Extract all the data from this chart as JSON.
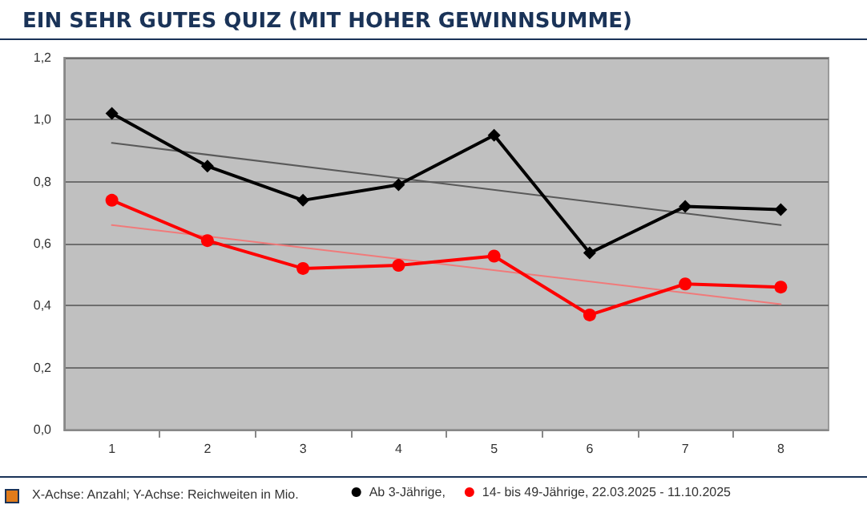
{
  "chart_data": {
    "type": "line",
    "title": "EIN SEHR GUTES QUIZ (MIT HOHER GEWINNSUMME)",
    "annotations": [
      "X-Achse: Anzahl; Y-Achse: Reichweiten in Mio."
    ],
    "categories": [
      "1",
      "2",
      "3",
      "4",
      "5",
      "6",
      "7",
      "8"
    ],
    "series": [
      {
        "name": "Ab 3-Jährige,",
        "color": "#000000",
        "marker": "diamond",
        "values": [
          1.02,
          0.85,
          0.74,
          0.79,
          0.95,
          0.57,
          0.72,
          0.71
        ]
      },
      {
        "name": "14- bis 49-Jährige, 22.03.2025 - 11.10.2025",
        "color": "#ff0000",
        "marker": "circle",
        "values": [
          0.74,
          0.61,
          0.52,
          0.53,
          0.56,
          0.37,
          0.47,
          0.46
        ]
      },
      {
        "type": "line",
        "color": "#595959",
        "marker": "none",
        "x": [
          "1",
          "8"
        ],
        "values": [
          0.925,
          0.66
        ]
      },
      {
        "type": "line",
        "color": "#f07a7a",
        "marker": "none",
        "x": [
          "1",
          "8"
        ],
        "values": [
          0.66,
          0.405
        ]
      }
    ],
    "ylim": [
      0,
      1.2
    ],
    "yticks": [
      {
        "value": 0,
        "label": "0,0"
      },
      {
        "value": 0.2,
        "label": "0,2"
      },
      {
        "value": 0.4,
        "label": "0,4"
      },
      {
        "value": 0.6,
        "label": "0,6"
      },
      {
        "value": 0.8,
        "label": "0,8"
      },
      {
        "value": 1.0,
        "label": "1,0"
      },
      {
        "value": 1.2,
        "label": "1,2"
      }
    ],
    "grid": "y",
    "legend": "bottom right"
  }
}
